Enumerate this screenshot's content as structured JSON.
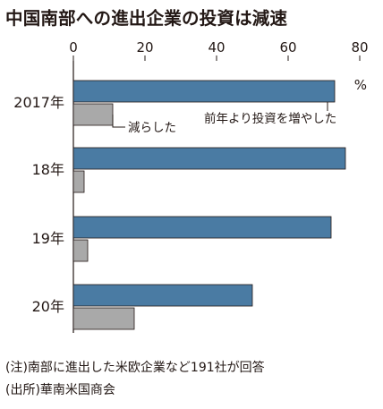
{
  "chart_data": {
    "type": "bar",
    "title": "中国南部への進出企業の投資は減速",
    "unit": "%",
    "categories": [
      "2017年",
      "18年",
      "19年",
      "20年"
    ],
    "series": [
      {
        "name": "前年より投資を増やした",
        "values": [
          73,
          76,
          72,
          50
        ],
        "color": "#4a7ba3"
      },
      {
        "name": "減らした",
        "values": [
          11,
          3,
          4,
          17
        ],
        "color": "#a9a9a9"
      }
    ],
    "xlim": [
      0,
      80
    ],
    "xticks": [
      0,
      20,
      40,
      60,
      80
    ],
    "grid": false,
    "legend": "inline annotations near first category"
  },
  "notes": [
    "(注)南部に進出した米欧企業など191社が回答",
    "(出所)華南米国商会"
  ]
}
